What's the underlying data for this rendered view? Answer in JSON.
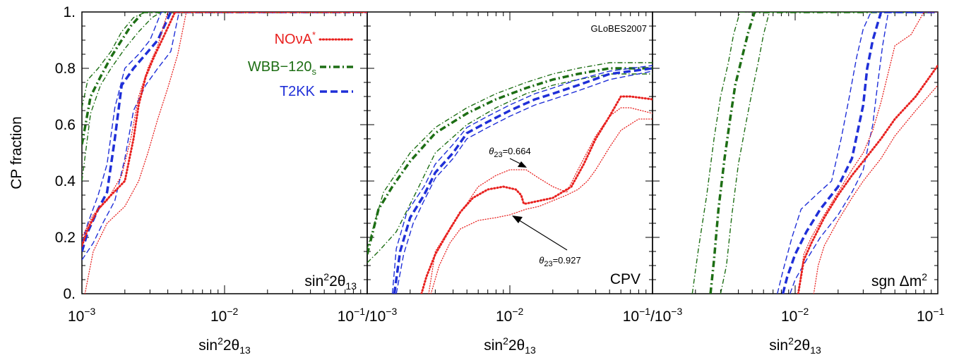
{
  "chart_data": {
    "type": "line",
    "ylabel": "CP fraction",
    "ytick_labels": [
      "0.",
      "0.2",
      "0.4",
      "0.6",
      "0.8",
      "1."
    ],
    "ylim": [
      0,
      1
    ],
    "xscale": "log",
    "xlim": [
      0.001,
      0.1
    ],
    "xtick_labels": {
      "base": "10",
      "exps": [
        "−3",
        "−2",
        "−1"
      ],
      "separator": "/"
    },
    "xlabel": {
      "prefix": "sin",
      "sup": "2",
      "mid": "2θ",
      "sub": "13"
    },
    "watermark": "GLoBES2007",
    "legend": {
      "placement": "top-right of first panel",
      "entries": [
        {
          "name": "NOνA",
          "sup": "*",
          "color": "#e8201e",
          "style": "dotted"
        },
        {
          "name": "WBB−120",
          "sub": "s",
          "color": "#1d6e14",
          "style": "dashdot"
        },
        {
          "name": "T2KK",
          "color": "#1f2fd8",
          "style": "dashed"
        }
      ]
    },
    "panels": [
      {
        "label": {
          "prefix": "sin",
          "sup": "2",
          "mid": "2θ",
          "sub": "13"
        },
        "series": [
          {
            "name": "WBB−120s",
            "band": "central",
            "x": [
              0.001,
              0.00115,
              0.00135,
              0.0016,
              0.0019,
              0.0022,
              0.0027,
              0.0031,
              0.1
            ],
            "y": [
              0.53,
              0.7,
              0.77,
              0.84,
              0.9,
              0.95,
              1.0,
              1.0,
              1.0
            ]
          },
          {
            "name": "WBB−120s",
            "band": "upper",
            "x": [
              0.001,
              0.0011,
              0.0013,
              0.0016,
              0.0019,
              0.0023,
              0.0028,
              0.1
            ],
            "y": [
              0.66,
              0.76,
              0.8,
              0.86,
              0.93,
              0.98,
              1.0,
              1.0
            ]
          },
          {
            "name": "WBB−120s",
            "band": "lower",
            "x": [
              0.001,
              0.00115,
              0.00135,
              0.0016,
              0.002,
              0.0025,
              0.0031,
              0.0036,
              0.1
            ],
            "y": [
              0.4,
              0.64,
              0.74,
              0.8,
              0.87,
              0.93,
              0.98,
              1.0,
              1.0
            ]
          },
          {
            "name": "T2KK",
            "band": "central",
            "x": [
              0.001,
              0.0011,
              0.0013,
              0.0015,
              0.0017,
              0.0019,
              0.0023,
              0.0028,
              0.0034,
              0.0042,
              0.1
            ],
            "y": [
              0.15,
              0.22,
              0.3,
              0.36,
              0.55,
              0.74,
              0.8,
              0.85,
              0.9,
              1.0,
              1.0
            ]
          },
          {
            "name": "T2KK",
            "band": "upper",
            "x": [
              0.001,
              0.0011,
              0.0013,
              0.0015,
              0.0017,
              0.002,
              0.0025,
              0.003,
              0.0036,
              0.1
            ],
            "y": [
              0.18,
              0.25,
              0.35,
              0.46,
              0.66,
              0.8,
              0.85,
              0.9,
              1.0,
              1.0
            ]
          },
          {
            "name": "T2KK",
            "band": "lower",
            "x": [
              0.001,
              0.0012,
              0.0014,
              0.0017,
              0.002,
              0.0023,
              0.0028,
              0.0034,
              0.0042,
              0.0048,
              0.1
            ],
            "y": [
              0.12,
              0.18,
              0.25,
              0.33,
              0.48,
              0.65,
              0.74,
              0.8,
              0.86,
              1.0,
              1.0
            ]
          },
          {
            "name": "NOνA*",
            "band": "central",
            "x": [
              0.001,
              0.0011,
              0.0013,
              0.0016,
              0.002,
              0.0023,
              0.0025,
              0.0028,
              0.0032,
              0.0038,
              0.0045,
              0.1
            ],
            "y": [
              0.17,
              0.23,
              0.3,
              0.35,
              0.4,
              0.55,
              0.67,
              0.77,
              0.84,
              0.92,
              1.0,
              1.0
            ]
          },
          {
            "name": "NOνA*",
            "band": "upper",
            "x": [
              0.001,
              0.0012,
              0.0015,
              0.0019,
              0.0022,
              0.0025,
              0.0029,
              0.0034,
              0.004,
              0.1
            ],
            "y": [
              0.2,
              0.28,
              0.33,
              0.42,
              0.55,
              0.7,
              0.8,
              0.88,
              1.0,
              1.0
            ]
          },
          {
            "name": "NOνA*",
            "band": "lower",
            "x": [
              0.00105,
              0.0012,
              0.0015,
              0.002,
              0.0025,
              0.0029,
              0.0034,
              0.004,
              0.0047,
              0.0054,
              0.1
            ],
            "y": [
              0.0,
              0.15,
              0.25,
              0.31,
              0.4,
              0.5,
              0.62,
              0.73,
              0.85,
              1.0,
              1.0
            ]
          }
        ]
      },
      {
        "label": "CPV",
        "annotations": [
          {
            "text_main": "θ",
            "text_sub": "23",
            "text_val": "=0.664"
          },
          {
            "text_main": "θ",
            "text_sub": "23",
            "text_val": "=0.927"
          }
        ],
        "series": [
          {
            "name": "WBB−120s",
            "band": "central",
            "x": [
              0.001,
              0.0012,
              0.0015,
              0.002,
              0.003,
              0.005,
              0.008,
              0.013,
              0.02,
              0.03,
              0.05,
              0.1
            ],
            "y": [
              0.14,
              0.3,
              0.38,
              0.47,
              0.57,
              0.64,
              0.69,
              0.73,
              0.76,
              0.78,
              0.8,
              0.8
            ]
          },
          {
            "name": "WBB−120s",
            "band": "upper",
            "x": [
              0.001,
              0.0013,
              0.002,
              0.003,
              0.005,
              0.008,
              0.013,
              0.02,
              0.03,
              0.05,
              0.1
            ],
            "y": [
              0.16,
              0.36,
              0.5,
              0.59,
              0.66,
              0.71,
              0.75,
              0.78,
              0.8,
              0.82,
              0.82
            ]
          },
          {
            "name": "WBB−120s",
            "band": "lower",
            "x": [
              0.001,
              0.0012,
              0.0016,
              0.0022,
              0.003,
              0.005,
              0.008,
              0.013,
              0.02,
              0.03,
              0.05,
              0.1
            ],
            "y": [
              0.11,
              0.15,
              0.22,
              0.36,
              0.5,
              0.6,
              0.66,
              0.71,
              0.74,
              0.76,
              0.78,
              0.78
            ]
          },
          {
            "name": "T2KK",
            "band": "central",
            "x": [
              0.00155,
              0.0017,
              0.002,
              0.0025,
              0.003,
              0.004,
              0.005,
              0.007,
              0.01,
              0.015,
              0.02,
              0.03,
              0.05,
              0.1
            ],
            "y": [
              0.0,
              0.15,
              0.27,
              0.35,
              0.43,
              0.5,
              0.57,
              0.61,
              0.65,
              0.69,
              0.71,
              0.74,
              0.78,
              0.8
            ]
          },
          {
            "name": "T2KK",
            "band": "upper",
            "x": [
              0.0015,
              0.0016,
              0.0019,
              0.0025,
              0.003,
              0.004,
              0.005,
              0.007,
              0.01,
              0.015,
              0.02,
              0.03,
              0.05,
              0.1
            ],
            "y": [
              0.0,
              0.16,
              0.29,
              0.38,
              0.46,
              0.53,
              0.59,
              0.63,
              0.67,
              0.71,
              0.73,
              0.76,
              0.79,
              0.81
            ]
          },
          {
            "name": "T2KK",
            "band": "lower",
            "x": [
              0.0016,
              0.0018,
              0.0021,
              0.0025,
              0.003,
              0.004,
              0.005,
              0.007,
              0.01,
              0.015,
              0.02,
              0.03,
              0.05,
              0.1
            ],
            "y": [
              0.0,
              0.14,
              0.25,
              0.33,
              0.41,
              0.48,
              0.55,
              0.59,
              0.63,
              0.67,
              0.69,
              0.72,
              0.76,
              0.79
            ]
          },
          {
            "name": "NOνA*",
            "band": "central",
            "x": [
              0.0024,
              0.0026,
              0.003,
              0.0037,
              0.0045,
              0.0055,
              0.007,
              0.009,
              0.011,
              0.012,
              0.0125,
              0.013,
              0.02,
              0.027,
              0.033,
              0.04,
              0.05,
              0.06,
              0.07,
              0.1
            ],
            "y": [
              0.0,
              0.06,
              0.14,
              0.22,
              0.29,
              0.34,
              0.37,
              0.38,
              0.37,
              0.35,
              0.32,
              0.32,
              0.34,
              0.38,
              0.46,
              0.55,
              0.63,
              0.7,
              0.7,
              0.69
            ]
          },
          {
            "name": "NOνA*",
            "band": "upper",
            "x": [
              0.0027,
              0.003,
              0.004,
              0.005,
              0.006,
              0.008,
              0.01,
              0.013,
              0.016,
              0.02,
              0.025,
              0.03,
              0.04,
              0.05,
              0.06,
              0.07,
              0.1
            ],
            "y": [
              0.0,
              0.15,
              0.25,
              0.32,
              0.38,
              0.42,
              0.44,
              0.44,
              0.41,
              0.38,
              0.36,
              0.44,
              0.56,
              0.63,
              0.66,
              0.66,
              0.64
            ]
          },
          {
            "name": "NOνA*",
            "band": "lower",
            "x": [
              0.0028,
              0.0032,
              0.0038,
              0.0045,
              0.006,
              0.008,
              0.01,
              0.013,
              0.016,
              0.02,
              0.025,
              0.03,
              0.035,
              0.04,
              0.05,
              0.06,
              0.08,
              0.1
            ],
            "y": [
              0.0,
              0.1,
              0.18,
              0.23,
              0.26,
              0.27,
              0.28,
              0.3,
              0.31,
              0.33,
              0.35,
              0.37,
              0.4,
              0.44,
              0.52,
              0.58,
              0.62,
              0.62
            ]
          }
        ]
      },
      {
        "label": {
          "prefix": "sgn Δm",
          "sup": "2"
        },
        "series": [
          {
            "name": "WBB−120s",
            "band": "central",
            "x": [
              0.00255,
              0.0027,
              0.0029,
              0.0032,
              0.0035,
              0.0038,
              0.0042,
              0.0047,
              0.0052,
              0.1
            ],
            "y": [
              0.0,
              0.12,
              0.3,
              0.48,
              0.62,
              0.74,
              0.83,
              0.93,
              1.0,
              1.0
            ]
          },
          {
            "name": "WBB−120s",
            "band": "upper",
            "x": [
              0.0019,
              0.0021,
              0.0024,
              0.0027,
              0.003,
              0.0034,
              0.0037,
              0.0041,
              0.1
            ],
            "y": [
              0.0,
              0.16,
              0.35,
              0.55,
              0.7,
              0.82,
              0.92,
              1.0,
              1.0
            ]
          },
          {
            "name": "WBB−120s",
            "band": "lower",
            "x": [
              0.003,
              0.0033,
              0.0036,
              0.004,
              0.0045,
              0.005,
              0.0055,
              0.006,
              0.0066,
              0.1
            ],
            "y": [
              0.0,
              0.1,
              0.28,
              0.46,
              0.6,
              0.72,
              0.82,
              0.92,
              1.0,
              1.0
            ]
          },
          {
            "name": "T2KK",
            "band": "central",
            "x": [
              0.0082,
              0.0088,
              0.01,
              0.012,
              0.015,
              0.02,
              0.025,
              0.03,
              0.032,
              0.035,
              0.04,
              0.1
            ],
            "y": [
              0.0,
              0.06,
              0.14,
              0.22,
              0.3,
              0.38,
              0.48,
              0.67,
              0.8,
              0.9,
              1.0,
              1.0
            ]
          },
          {
            "name": "T2KK",
            "band": "upper",
            "x": [
              0.0075,
              0.0082,
              0.0095,
              0.011,
              0.014,
              0.018,
              0.021,
              0.024,
              0.027,
              0.03,
              0.034,
              0.1
            ],
            "y": [
              0.0,
              0.08,
              0.2,
              0.3,
              0.35,
              0.4,
              0.55,
              0.7,
              0.84,
              0.94,
              1.0,
              1.0
            ]
          },
          {
            "name": "T2KK",
            "band": "lower",
            "x": [
              0.0092,
              0.01,
              0.012,
              0.015,
              0.02,
              0.025,
              0.03,
              0.035,
              0.038,
              0.041,
              0.045,
              0.1
            ],
            "y": [
              0.0,
              0.05,
              0.12,
              0.2,
              0.28,
              0.36,
              0.44,
              0.6,
              0.75,
              0.88,
              1.0,
              1.0
            ]
          },
          {
            "name": "NOνA*",
            "band": "central",
            "x": [
              0.0105,
              0.0115,
              0.013,
              0.016,
              0.02,
              0.025,
              0.03,
              0.04,
              0.05,
              0.07,
              0.1
            ],
            "y": [
              0.0,
              0.12,
              0.18,
              0.27,
              0.35,
              0.42,
              0.47,
              0.55,
              0.62,
              0.7,
              0.81
            ]
          },
          {
            "name": "NOνA*",
            "band": "upper",
            "x": [
              0.0105,
              0.0115,
              0.013,
              0.016,
              0.02,
              0.025,
              0.03,
              0.035,
              0.04,
              0.05,
              0.065,
              0.08,
              0.1
            ],
            "y": [
              0.0,
              0.14,
              0.2,
              0.28,
              0.36,
              0.44,
              0.5,
              0.58,
              0.68,
              0.88,
              0.92,
              1.0,
              1.0
            ]
          },
          {
            "name": "NOνA*",
            "band": "lower",
            "x": [
              0.0135,
              0.0145,
              0.016,
              0.02,
              0.025,
              0.03,
              0.04,
              0.05,
              0.07,
              0.1
            ],
            "y": [
              0.0,
              0.1,
              0.17,
              0.26,
              0.34,
              0.4,
              0.48,
              0.56,
              0.65,
              0.74
            ]
          }
        ]
      }
    ]
  }
}
